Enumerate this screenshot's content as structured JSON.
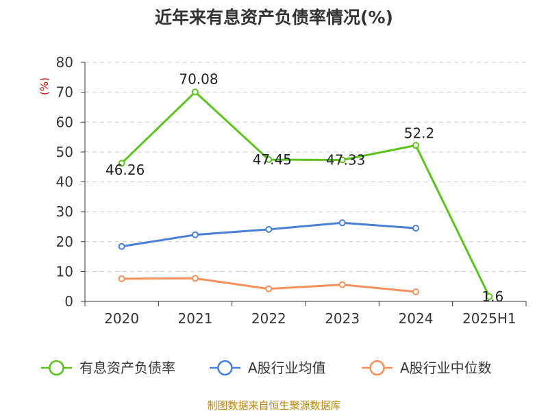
{
  "chart_data": {
    "type": "line",
    "title": "近年来有息资产负债率情况(%)",
    "ylabel": "(%)",
    "xlabel": "",
    "categories": [
      "2020",
      "2021",
      "2022",
      "2023",
      "2024",
      "2025H1"
    ],
    "ylim": [
      0,
      80
    ],
    "yticks": [
      0,
      10,
      20,
      30,
      40,
      50,
      60,
      70,
      80
    ],
    "grid": true,
    "legend_position": "bottom",
    "series": [
      {
        "name": "有息资产负债率",
        "color": "#5cc21e",
        "show_labels": true,
        "values": [
          46.26,
          70.08,
          47.45,
          47.33,
          52.2,
          1.6
        ],
        "labels": [
          "46.26",
          "70.08",
          "47.45",
          "47.33",
          "52.2",
          "1.6"
        ]
      },
      {
        "name": "A股行业均值",
        "color": "#4a7fd8",
        "show_labels": false,
        "values": [
          18.4,
          22.3,
          24.1,
          26.3,
          24.5,
          null
        ]
      },
      {
        "name": "A股行业中位数",
        "color": "#f5905a",
        "show_labels": false,
        "values": [
          7.6,
          7.7,
          4.2,
          5.6,
          3.2,
          null
        ]
      }
    ],
    "source": "制图数据来自恒生聚源数据库"
  }
}
